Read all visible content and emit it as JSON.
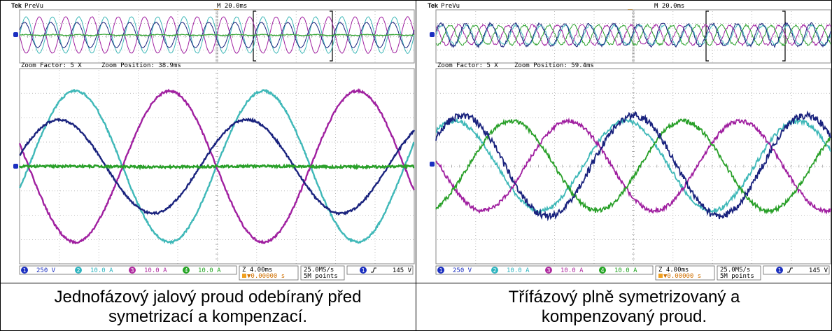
{
  "panels": [
    {
      "id": "left",
      "brand": "Tek",
      "mode": "PreVu",
      "timebase": "M 20.0ms",
      "zoom_factor": "Zoom Factor: 5 X",
      "zoom_position": "Zoom Position: 38.9ms",
      "status_bar": {
        "channels": [
          {
            "num": "1",
            "value": "250 V",
            "color": "#1b2fc0"
          },
          {
            "num": "2",
            "value": "10.0 A",
            "color": "#2fb5c0"
          },
          {
            "num": "3",
            "value": "10.0 A",
            "color": "#b02aa0"
          },
          {
            "num": "4",
            "value": "10.0 A",
            "color": "#23a523"
          }
        ],
        "horizontal": "Z 4.00ms",
        "delay": "▼0.00000 s",
        "sample_rate": "25.0MS/s",
        "record_length": "5M points",
        "trigger_source": "1",
        "trigger_level": "145 V"
      },
      "caption_lines": [
        "Jednofázový jalový proud odebíraný před",
        "symetrizací a kompenzací."
      ]
    },
    {
      "id": "right",
      "brand": "Tek",
      "mode": "PreVu",
      "timebase": "M 20.0ms",
      "zoom_factor": "Zoom Factor: 5 X",
      "zoom_position": "Zoom Position: 59.4ms",
      "status_bar": {
        "channels": [
          {
            "num": "1",
            "value": "250 V",
            "color": "#1b2fc0"
          },
          {
            "num": "2",
            "value": "10.0 A",
            "color": "#2fb5c0"
          },
          {
            "num": "3",
            "value": "10.0 A",
            "color": "#b02aa0"
          },
          {
            "num": "4",
            "value": "10.0 A",
            "color": "#23a523"
          }
        ],
        "horizontal": "Z 4.00ms",
        "delay": "▼0.00000 s",
        "sample_rate": "25.0MS/s",
        "record_length": "5M points",
        "trigger_source": "1",
        "trigger_level": "145 V"
      },
      "caption_lines": [
        "Třífázový plně symetrizovaný a",
        "kompenzovaný proud."
      ]
    }
  ],
  "trace_colors": {
    "ch1": "#1a237e",
    "ch2": "#3fb8b8",
    "ch3": "#a020a0",
    "ch4": "#2aa02a"
  }
}
